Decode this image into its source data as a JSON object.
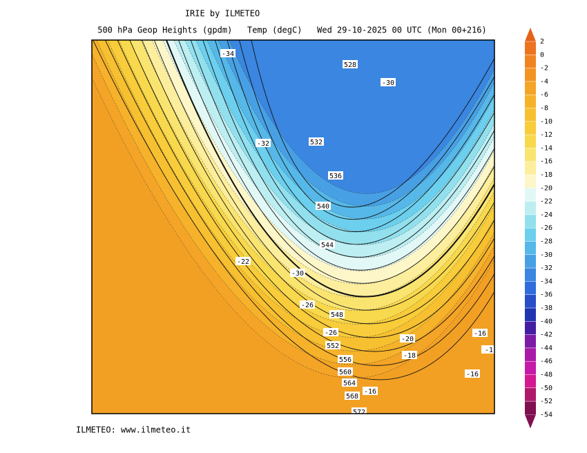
{
  "header": {
    "title": "IRIE by ILMETEO",
    "subtitle": "500 hPa Geop Heights (gpdm)   Temp (degC)   Wed 29-10-2025 00 UTC (Mon 00+216)"
  },
  "colorbar": {
    "ticks": [
      {
        "label": "2",
        "color": "#e4621a"
      },
      {
        "label": "0",
        "color": "#ec7420"
      },
      {
        "label": "-2",
        "color": "#f08422"
      },
      {
        "label": "-4",
        "color": "#f29424"
      },
      {
        "label": "-6",
        "color": "#f4a426"
      },
      {
        "label": "-8",
        "color": "#f5b22a"
      },
      {
        "label": "-10",
        "color": "#f6c030"
      },
      {
        "label": "-12",
        "color": "#f8cc3a"
      },
      {
        "label": "-14",
        "color": "#f8d84c"
      },
      {
        "label": "-16",
        "color": "#fae470"
      },
      {
        "label": "-18",
        "color": "#fcee9c"
      },
      {
        "label": "-20",
        "color": "#fcf6c8"
      },
      {
        "label": "-22",
        "color": "#e2f8f6"
      },
      {
        "label": "-24",
        "color": "#bceef2"
      },
      {
        "label": "-26",
        "color": "#92e0ee"
      },
      {
        "label": "-28",
        "color": "#6ccfee"
      },
      {
        "label": "-30",
        "color": "#56b8e8"
      },
      {
        "label": "-32",
        "color": "#48a0e4"
      },
      {
        "label": "-34",
        "color": "#3a86e0"
      },
      {
        "label": "-36",
        "color": "#306cdc"
      },
      {
        "label": "-38",
        "color": "#284ec8"
      },
      {
        "label": "-40",
        "color": "#2036b0"
      },
      {
        "label": "-42",
        "color": "#441ea2"
      },
      {
        "label": "-44",
        "color": "#7c1ca6"
      },
      {
        "label": "-46",
        "color": "#aa1aa8"
      },
      {
        "label": "-48",
        "color": "#c81aa8"
      },
      {
        "label": "-50",
        "color": "#d41a90"
      },
      {
        "label": "-52",
        "color": "#b0186c"
      },
      {
        "label": "-54",
        "color": "#801050"
      }
    ]
  },
  "contour_labels": {
    "heights": [
      "528",
      "532",
      "536",
      "540",
      "544",
      "548",
      "552",
      "556",
      "560",
      "564",
      "568",
      "572"
    ],
    "temperatures": [
      "-34",
      "-30",
      "-32",
      "-22",
      "-30",
      "-26",
      "-26",
      "-20",
      "-18",
      "-16",
      "-16",
      "-16",
      "-1"
    ]
  },
  "footer": "ILMETEO: www.ilmeteo.it"
}
